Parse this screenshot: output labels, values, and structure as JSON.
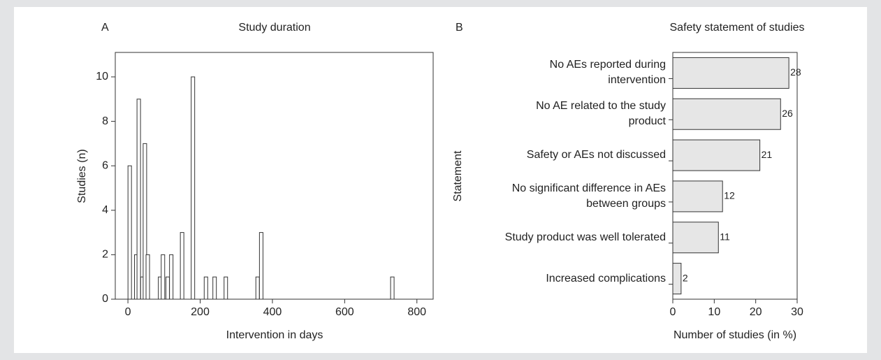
{
  "chart_data": [
    {
      "type": "bar",
      "panel": "A",
      "title": "Study duration",
      "x_label": "Intervention in days",
      "y_label": "Studies (n)",
      "x": [
        5,
        23,
        30,
        40,
        47,
        55,
        89,
        97,
        110,
        120,
        150,
        180,
        216,
        240,
        271,
        359,
        369,
        732
      ],
      "values": [
        6,
        2,
        9,
        1,
        7,
        2,
        1,
        2,
        1,
        2,
        3,
        10,
        1,
        1,
        1,
        1,
        3,
        1
      ],
      "color": "#ffffff",
      "xlim": [
        -35,
        845
      ],
      "xticks": [
        0,
        200,
        400,
        600,
        800
      ],
      "ylim": [
        0,
        11.1
      ],
      "yticks": [
        0,
        2,
        4,
        6,
        8,
        10
      ]
    },
    {
      "type": "barh",
      "panel": "B",
      "title": "Safety statement of studies",
      "x_label": "Number of studies (in %)",
      "y_label": "Statement",
      "categories": [
        "No AEs reported during\nintervention",
        "No AE related to the study\nproduct",
        "Safety or AEs not discussed",
        "No significant difference in AEs\nbetween groups",
        "Study product was well tolerated",
        "Increased complications"
      ],
      "values": [
        28,
        26,
        21,
        12,
        11,
        2
      ],
      "color": "#e6e6e6",
      "xlim": [
        0,
        30
      ],
      "xticks": [
        0,
        10,
        20,
        30
      ]
    }
  ]
}
